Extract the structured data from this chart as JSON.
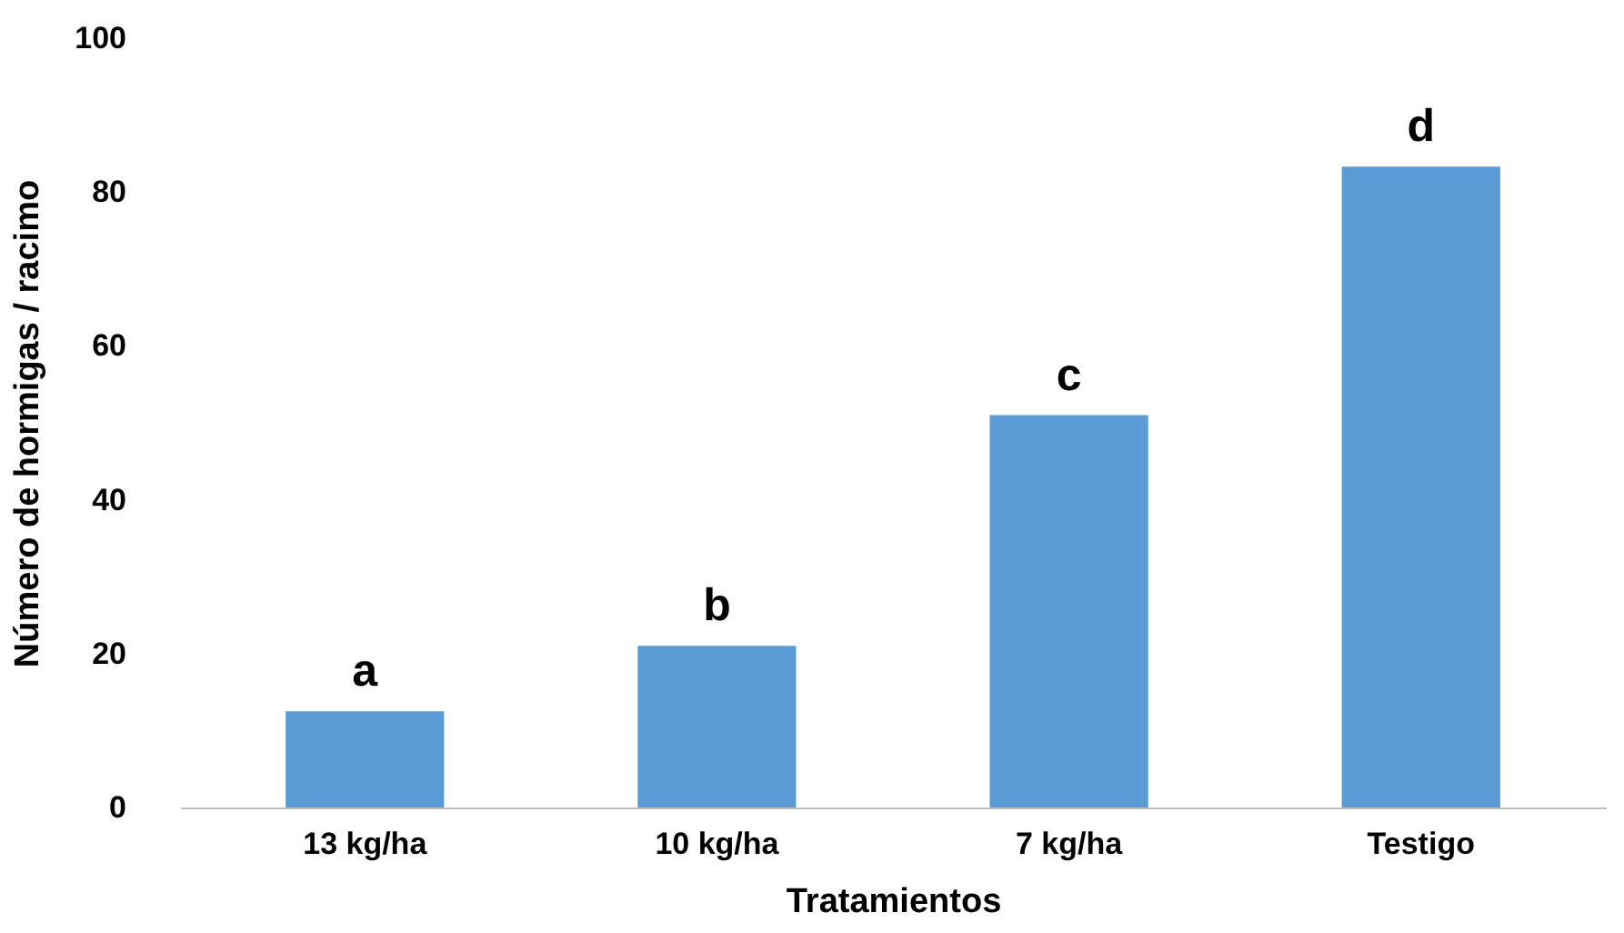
{
  "chart_data": {
    "type": "bar",
    "xlabel": "Tratamientos",
    "ylabel": "Número de hormigas / racimo",
    "categories": [
      "13 kg/ha",
      "10 kg/ha",
      "7 kg/ha",
      "Testigo"
    ],
    "values": [
      12.5,
      21,
      51,
      83.3
    ],
    "color": "#5b9bd5",
    "ylim": [
      0,
      100
    ],
    "yticks": [
      0,
      20,
      40,
      60,
      80,
      100
    ],
    "grid": false,
    "annotations": [
      {
        "text": "a",
        "x": "13 kg/ha",
        "y": 12.5
      },
      {
        "text": "b",
        "x": "10 kg/ha",
        "y": 21
      },
      {
        "text": "c",
        "x": "7 kg/ha",
        "y": 51
      },
      {
        "text": "d",
        "x": "Testigo",
        "y": 83.3
      }
    ]
  }
}
